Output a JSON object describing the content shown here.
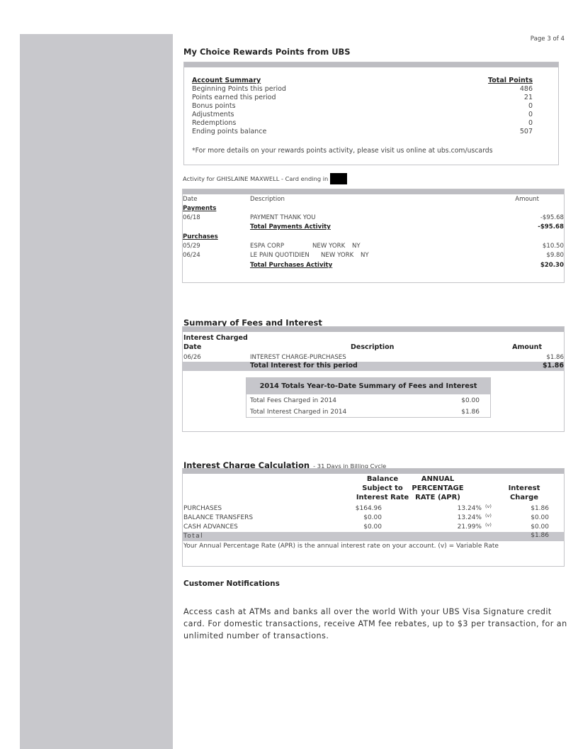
{
  "page_number": "Page 3 of 4",
  "colors": {
    "sidebar": "#c8c8cc",
    "band": "#bdbdc2"
  },
  "rewards": {
    "title": "My Choice Rewards Points from UBS",
    "header_label": "Account Summary",
    "header_value": "Total Points",
    "rows": [
      {
        "label": "Beginning Points this period",
        "value": "486"
      },
      {
        "label": "Points earned this period",
        "value": "21"
      },
      {
        "label": "Bonus points",
        "value": "0"
      },
      {
        "label": "Adjustments",
        "value": "0"
      },
      {
        "label": "Redemptions",
        "value": "0"
      },
      {
        "label": "Ending points balance",
        "value": "507"
      }
    ],
    "footnote": "*For more details on your rewards points activity, please visit us online at ubs.com/uscards"
  },
  "activity": {
    "label": "Activity for GHISLAINE MAXWELL - Card ending in",
    "col_date": "Date",
    "col_desc": "Description",
    "col_amount": "Amount",
    "payments_label": "Payments",
    "payments": [
      {
        "date": "06/18",
        "desc": "PAYMENT THANK YOU",
        "city": "",
        "state": "",
        "amount": "-$95.68"
      }
    ],
    "payments_total_label": "Total Payments Activity",
    "payments_total": "-$95.68",
    "purchases_label": "Purchases",
    "purchases": [
      {
        "date": "05/29",
        "desc": "ESPA CORP",
        "city": "NEW YORK",
        "state": "NY",
        "amount": "$10.50"
      },
      {
        "date": "06/24",
        "desc": "LE PAIN QUOTIDIEN",
        "city": "NEW YORK",
        "state": "NY",
        "amount": "$9.80"
      }
    ],
    "purchases_total_label": "Total Purchases Activity",
    "purchases_total": "$20.30"
  },
  "fees": {
    "title": "Summary of Fees and Interest",
    "section": "Interest Charged",
    "col_date": "Date",
    "col_desc": "Description",
    "col_amount": "Amount",
    "row": {
      "date": "06/26",
      "desc": "INTEREST CHARGE-PURCHASES",
      "amount": "$1.86"
    },
    "total_label": "Total Interest for this period",
    "total": "$1.86",
    "ytd": {
      "title": "2014 Totals Year-to-Date Summary of Fees and Interest",
      "rows": [
        {
          "label": "Total Fees Charged in 2014",
          "value": "$0.00"
        },
        {
          "label": "Total Interest Charged in 2014",
          "value": "$1.86"
        }
      ]
    }
  },
  "calc": {
    "title": "Interest Charge Calculation",
    "subtitle": "- 31 Days in Billing Cycle",
    "col_balance": [
      "Balance",
      "Subject to",
      "Interest Rate"
    ],
    "col_apr": [
      "ANNUAL",
      "PERCENTAGE",
      "RATE (APR)"
    ],
    "col_charge": [
      "Interest",
      "Charge"
    ],
    "rows": [
      {
        "label": "PURCHASES",
        "balance": "$164.96",
        "apr": "13.24%",
        "flag": "(v)",
        "charge": "$1.86"
      },
      {
        "label": "BALANCE TRANSFERS",
        "balance": "$0.00",
        "apr": "13.24%",
        "flag": "(v)",
        "charge": "$0.00"
      },
      {
        "label": "CASH ADVANCES",
        "balance": "$0.00",
        "apr": "21.99%",
        "flag": "(v)",
        "charge": "$0.00"
      }
    ],
    "total_label": "Total",
    "total": "$1.86",
    "footnote": "Your Annual Percentage Rate (APR) is the annual interest rate on your account.  (v) = Variable Rate"
  },
  "notifications": {
    "title": "Customer Notifications",
    "lines": [
      "Access cash at ATMs and banks all over the world With your UBS Visa Signature credit",
      "card. For domestic transactions, receive ATM fee rebates, up to $3 per transaction, for an",
      "unlimited number of transactions."
    ]
  }
}
